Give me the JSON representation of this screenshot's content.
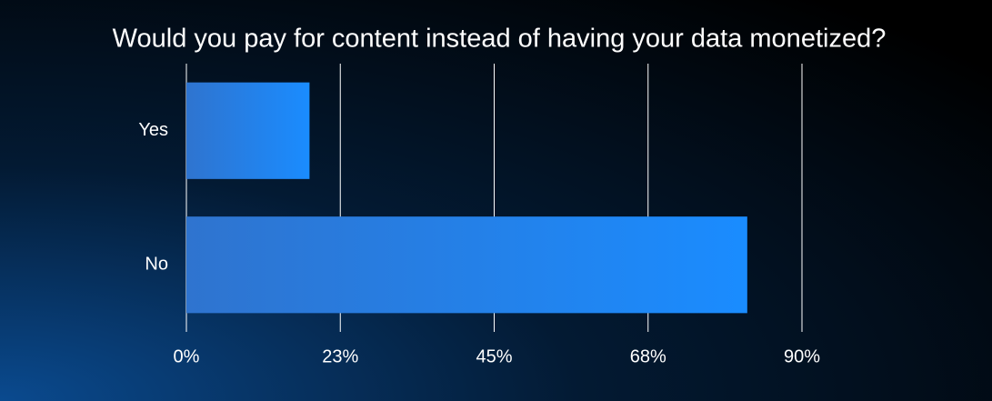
{
  "chart_data": {
    "type": "bar",
    "orientation": "horizontal",
    "title": "Would you pay for content instead of having your data monetized?",
    "categories": [
      "Yes",
      "No"
    ],
    "values": [
      18,
      82
    ],
    "color": "#1a8cff",
    "xlim": [
      0,
      90
    ],
    "xticks": [
      {
        "value": 0,
        "label": "0%"
      },
      {
        "value": 22.5,
        "label": "23%"
      },
      {
        "value": 45,
        "label": "45%"
      },
      {
        "value": 67.5,
        "label": "68%"
      },
      {
        "value": 90,
        "label": "90%"
      }
    ],
    "grid": true
  }
}
